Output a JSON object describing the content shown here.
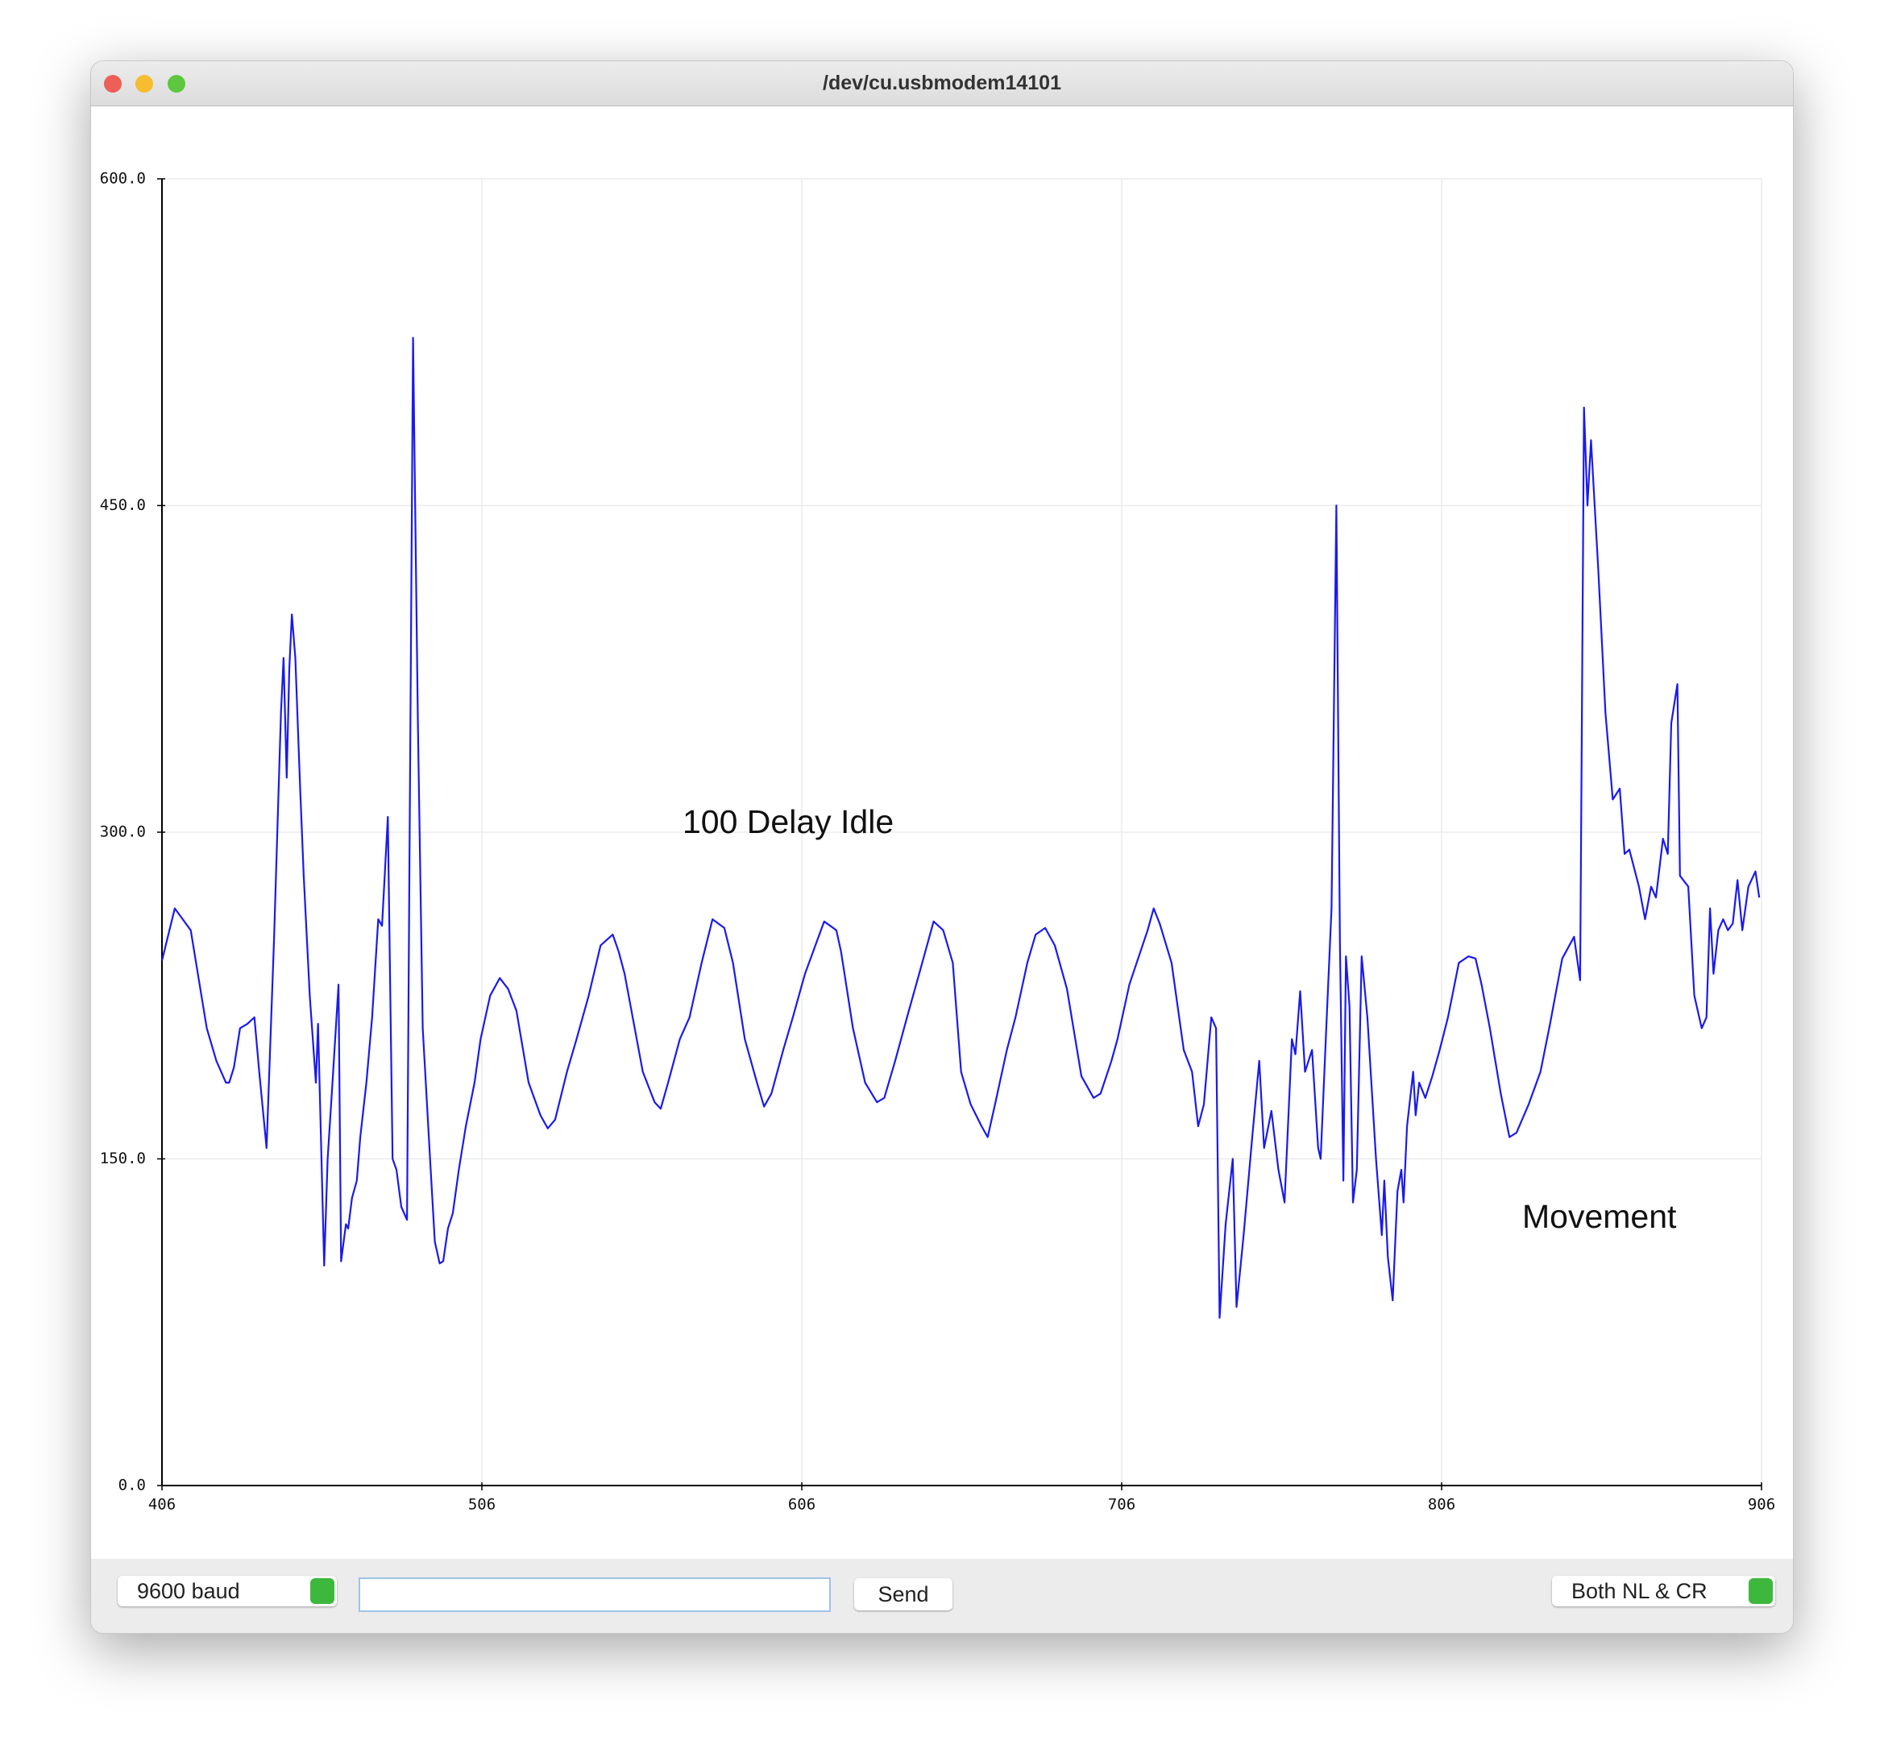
{
  "window": {
    "title": "/dev/cu.usbmodem14101"
  },
  "chart_data": {
    "type": "line",
    "color": "#1a1aee",
    "annotations": [
      "100 Delay Idle",
      "Movement"
    ],
    "xlim": [
      406,
      906
    ],
    "xticks": [
      406,
      506,
      606,
      706,
      806,
      906
    ],
    "ylim": [
      0,
      600
    ],
    "yticks": [
      {
        "value": 0,
        "label": "0.0"
      },
      {
        "value": 150,
        "label": "150.0"
      },
      {
        "value": 300,
        "label": "300.0"
      },
      {
        "value": 450,
        "label": "450.0"
      },
      {
        "value": 600,
        "label": "600.0"
      }
    ],
    "grid": true,
    "x": [
      406,
      410,
      412,
      415,
      420,
      423,
      426,
      427,
      428.5,
      430.4,
      432.7,
      434.9,
      436.4,
      438.7,
      441,
      443.2,
      444,
      445,
      445.8,
      446.6,
      447.7,
      449.2,
      450.3,
      452.2,
      454.1,
      454.8,
      456.7,
      457.8,
      459.3,
      461.2,
      462,
      463.5,
      464.2,
      465.4,
      466.9,
      468,
      469.9,
      471.7,
      473.6,
      474.8,
      476.6,
      478.1,
      479.3,
      480.8,
      482.6,
      484.5,
      486,
      487.5,
      489.8,
      491.3,
      492.8,
      493.9,
      495.4,
      496.9,
      498.8,
      501,
      503.7,
      505.6,
      508.6,
      511.6,
      514.2,
      516.8,
      520.6,
      524.3,
      526.6,
      528.9,
      532.6,
      535.6,
      539.4,
      543.1,
      546.9,
      548.8,
      550.6,
      556.3,
      560,
      561.9,
      564.2,
      567.9,
      570.9,
      574.7,
      578.1,
      581.8,
      584.5,
      588.2,
      592,
      594.2,
      596.5,
      600.2,
      603.2,
      607,
      613,
      616.8,
      618.3,
      622,
      625.8,
      629.5,
      631.8,
      635.2,
      638.9,
      642.7,
      647.2,
      650.2,
      653.2,
      655.8,
      658.8,
      662.2,
      664.1,
      666.4,
      670.1,
      672.8,
      676.5,
      679.1,
      682.1,
      685.1,
      688.9,
      693.4,
      697.2,
      699.4,
      702.8,
      704.7,
      708.4,
      714.1,
      716,
      717.9,
      721.6,
      725.4,
      728,
      729.9,
      731.7,
      734,
      735.5,
      736.6,
      738.5,
      740.7,
      741.9,
      744.1,
      746.8,
      749,
      750.5,
      752.8,
      755,
      756.9,
      759.2,
      760.3,
      761.8,
      763.3,
      765.5,
      767.4,
      768.2,
      770,
      771.6,
      773.1,
      774.2,
      775.3,
      776.1,
      777.2,
      778.3,
      779.5,
      781,
      782.8,
      785.5,
      787.3,
      788.1,
      789.2,
      790.7,
      792.2,
      793.4,
      794.1,
      795.2,
      797.1,
      797.9,
      799,
      800.9,
      803.1,
      805.4,
      808,
      811.4,
      814.4,
      816.6,
      818.5,
      821.1,
      824.5,
      827.2,
      829.4,
      833.2,
      836.9,
      839.9,
      843.7,
      847.4,
      849.3,
      850.5,
      851.6,
      852.7,
      855,
      857.2,
      859.5,
      861.7,
      863.2,
      864.7,
      867.7,
      869.6,
      871.5,
      873,
      875.2,
      876.7,
      877.8,
      879.7,
      880.5,
      883.1,
      885,
      887.3,
      888.8,
      889.9,
      891,
      892.5,
      894,
      895.5,
      897,
      898.5,
      900,
      901.9,
      904.1,
      905.3
    ],
    "values": [
      241,
      265,
      261,
      255,
      210,
      195,
      185,
      185,
      192,
      210,
      212,
      215,
      190,
      155,
      250,
      355,
      380,
      325,
      375,
      400,
      380,
      320,
      280,
      225,
      185,
      212,
      101,
      150,
      185,
      230,
      103,
      120,
      118,
      132,
      140,
      160,
      185,
      215,
      260,
      257,
      307,
      150,
      145,
      128,
      122,
      527,
      350,
      210,
      150,
      112,
      102,
      103,
      118,
      125,
      145,
      165,
      185,
      205,
      225,
      233,
      228,
      218,
      185,
      170,
      164,
      168,
      190,
      205,
      225,
      248,
      253,
      245,
      235,
      190,
      176,
      173,
      185,
      205,
      215,
      240,
      260,
      256,
      240,
      205,
      185,
      174,
      180,
      200,
      215,
      235,
      259,
      255,
      245,
      210,
      185,
      176,
      178,
      195,
      215,
      235,
      259,
      255,
      240,
      190,
      175,
      165,
      160,
      175,
      200,
      215,
      240,
      253,
      256,
      248,
      228,
      188,
      178,
      180,
      195,
      205,
      230,
      255,
      265,
      258,
      240,
      200,
      190,
      165,
      175,
      215,
      210,
      77,
      120,
      150,
      82,
      115,
      160,
      195,
      155,
      172,
      145,
      130,
      205,
      198,
      227,
      190,
      200,
      155,
      150,
      212,
      265,
      450,
      250,
      140,
      243,
      220,
      130,
      145,
      243,
      215,
      150,
      115,
      140,
      105,
      85,
      135,
      145,
      130,
      165,
      190,
      170,
      185,
      178,
      188,
      200,
      215,
      240,
      243,
      242,
      230,
      210,
      180,
      160,
      162,
      175,
      190,
      212,
      242,
      252,
      232,
      495,
      450,
      480,
      420,
      355,
      315,
      320,
      290,
      292,
      275,
      260,
      275,
      270,
      297,
      290,
      350,
      368,
      280,
      275,
      225,
      210,
      215,
      265,
      235,
      255,
      260,
      255,
      258,
      278,
      255,
      275,
      282,
      270
    ]
  },
  "controls": {
    "baud": "9600 baud",
    "send": "Send",
    "line_ending": "Both NL & CR"
  }
}
